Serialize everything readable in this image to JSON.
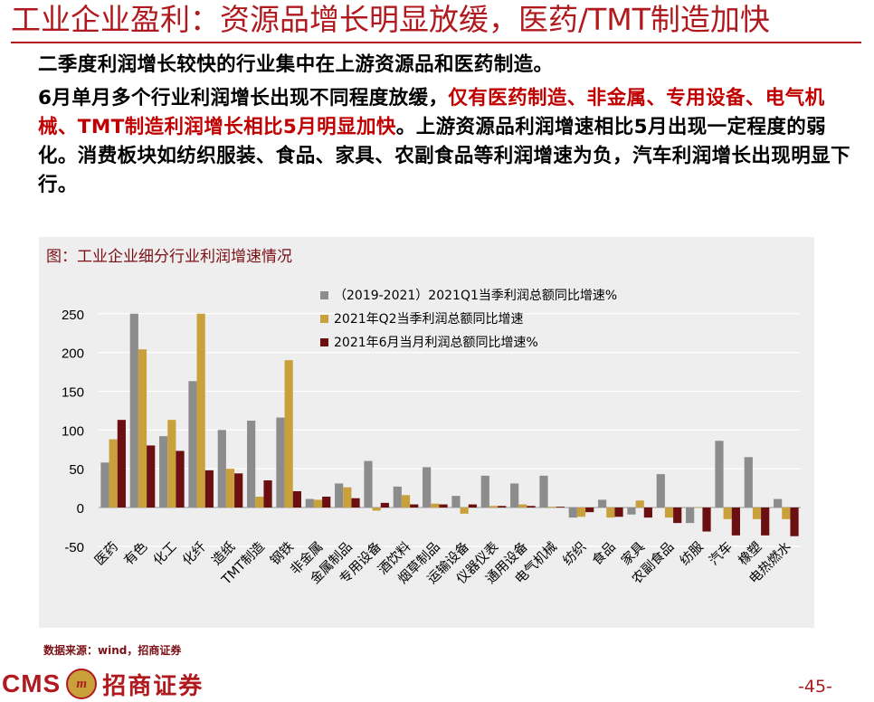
{
  "title": "工业企业盈利：资源品增长明显放缓，医药/TMT制造加快",
  "paragraph1": "二季度利润增长较快的行业集中在上游资源品和医药制造。",
  "paragraph2": {
    "part1": "6月单月多个行业利润增长出现不同程度放缓，",
    "part2_red": "仅有医药制造、非金属、专用设备、电气机械、TMT制造利润增长相比5月明显加快",
    "part3": "。上游资源品利润增速相比5月出现一定程度的弱化。消费板块如纺织服装、食品、家具、农副食品等利润增速为负，汽车利润增长出现明显下行。"
  },
  "source": "数据来源：wind，招商证券",
  "logo": {
    "latin": "CMS",
    "mark": "m",
    "chinese": "招商证券"
  },
  "page_number": "-45-",
  "colors": {
    "accent": "#b01a1f",
    "series1": "#8c8c8c",
    "series2": "#c9a13c",
    "series3": "#6b0f10",
    "panel": "#eeeeee"
  },
  "chart_data": {
    "type": "bar",
    "title": "图：工业企业细分行业利润增速情况",
    "categories": [
      "医药",
      "有色",
      "化工",
      "化纤",
      "造纸",
      "TMT制造",
      "钢铁",
      "非金属",
      "金属制品",
      "专用设备",
      "酒饮料",
      "烟草制品",
      "运输设备",
      "仪器仪表",
      "通用设备",
      "电气机械",
      "纺织",
      "食品",
      "家具",
      "农副食品",
      "纺服",
      "汽车",
      "橡塑",
      "电热燃水"
    ],
    "series": [
      {
        "name": "（2019-2021）2021Q1当季利润总额同比增速%",
        "values": [
          58,
          250,
          92,
          163,
          100,
          112,
          116,
          11,
          31,
          60,
          27,
          52,
          15,
          41,
          31,
          41,
          -13,
          10,
          -9,
          43,
          -20,
          86,
          65,
          11
        ]
      },
      {
        "name": "2021年Q2当季利润总额同比增速",
        "values": [
          88,
          204,
          113,
          250,
          50,
          14,
          190,
          10,
          26,
          -4,
          16,
          5,
          -8,
          2,
          4,
          1,
          -12,
          -13,
          9,
          -13,
          0,
          -15,
          -15,
          -15
        ]
      },
      {
        "name": "2021年6月当月利润总额同比增速%",
        "values": [
          113,
          80,
          73,
          48,
          44,
          35,
          21,
          14,
          12,
          6,
          4,
          4,
          4,
          2,
          2,
          1,
          -6,
          -12,
          -13,
          -20,
          -31,
          -36,
          -36,
          -37
        ]
      }
    ],
    "yticks": [
      250,
      200,
      150,
      100,
      50,
      0,
      -50
    ],
    "ylim": [
      -60,
      260
    ],
    "legend_position": "top-center"
  }
}
